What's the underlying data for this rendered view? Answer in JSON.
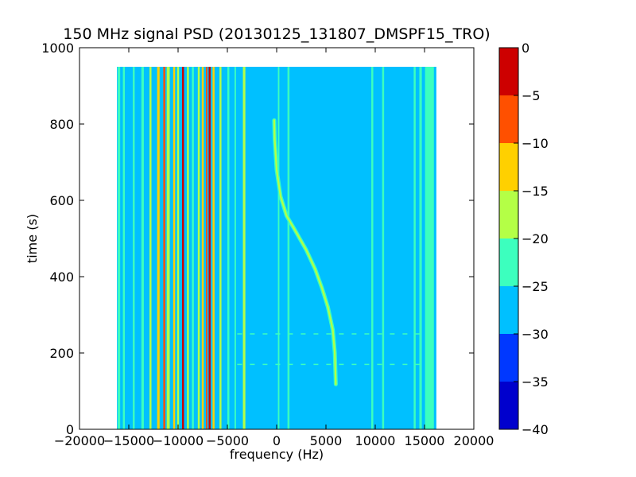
{
  "chart_data": {
    "type": "heatmap",
    "title": "150 MHz signal PSD (20130125_131807_DMSPF15_TRO)",
    "xlabel": "frequency (Hz)",
    "ylabel": "time (s)",
    "xlim": [
      -20000,
      20000
    ],
    "ylim": [
      0,
      1000
    ],
    "x_ticks": [
      -20000,
      -15000,
      -10000,
      -5000,
      0,
      5000,
      10000,
      15000,
      20000
    ],
    "x_tick_labels": [
      "−20000",
      "−15000",
      "−10000",
      "−5000",
      "0",
      "5000",
      "10000",
      "15000",
      "20000"
    ],
    "y_ticks": [
      0,
      200,
      400,
      600,
      800,
      1000
    ],
    "y_tick_labels": [
      "0",
      "200",
      "400",
      "600",
      "800",
      "1000"
    ],
    "data_extent": {
      "x": [
        -16200,
        16200
      ],
      "y": [
        0,
        950
      ]
    },
    "background_level": -27.5,
    "colorbar": {
      "levels": [
        -40,
        -35,
        -30,
        -25,
        -20,
        -15,
        -10,
        -5,
        0
      ],
      "tick_labels": [
        "−40",
        "−35",
        "−30",
        "−25",
        "−20",
        "−15",
        "−10",
        "−5",
        "0"
      ],
      "colors": [
        "#0000cd",
        "#0038ff",
        "#00c0ff",
        "#3cffbe",
        "#b4ff46",
        "#ffd000",
        "#ff5000",
        "#cd0000"
      ]
    },
    "vertical_lines": [
      {
        "freq": -16000,
        "level": -22.5,
        "width": 250
      },
      {
        "freq": -15500,
        "level": -22.5,
        "width": 200
      },
      {
        "freq": -14500,
        "level": -22.5,
        "width": 200
      },
      {
        "freq": -13600,
        "level": -22.5,
        "width": 250
      },
      {
        "freq": -12800,
        "level": -17.5,
        "width": 200
      },
      {
        "freq": -12000,
        "level": -12.5,
        "width": 250
      },
      {
        "freq": -11400,
        "level": -7.5,
        "width": 200
      },
      {
        "freq": -11000,
        "level": -17.5,
        "width": 300
      },
      {
        "freq": -10400,
        "level": -12.5,
        "width": 200
      },
      {
        "freq": -10000,
        "level": -17.5,
        "width": 200
      },
      {
        "freq": -9500,
        "level": -2.5,
        "width": 200
      },
      {
        "freq": -9000,
        "level": -17.5,
        "width": 200
      },
      {
        "freq": -8500,
        "level": -22.5,
        "width": 200
      },
      {
        "freq": -7900,
        "level": -17.5,
        "width": 200
      },
      {
        "freq": -7500,
        "level": -12.5,
        "width": 200
      },
      {
        "freq": -7100,
        "level": -7.5,
        "width": 150
      },
      {
        "freq": -6800,
        "level": -2.5,
        "width": 200
      },
      {
        "freq": -6400,
        "level": -12.5,
        "width": 200
      },
      {
        "freq": -5700,
        "level": -17.5,
        "width": 200
      },
      {
        "freq": -4900,
        "level": -22.5,
        "width": 200
      },
      {
        "freq": -4200,
        "level": -22.5,
        "width": 150
      },
      {
        "freq": -3300,
        "level": -17.5,
        "width": 250
      },
      {
        "freq": 200,
        "level": -22.5,
        "width": 150
      },
      {
        "freq": 1200,
        "level": -22.5,
        "width": 200
      },
      {
        "freq": 9700,
        "level": -22.5,
        "width": 200
      },
      {
        "freq": 10800,
        "level": -22.5,
        "width": 200
      },
      {
        "freq": 14000,
        "level": -22.5,
        "width": 200
      },
      {
        "freq": 14600,
        "level": -22.5,
        "width": 250
      },
      {
        "freq": 15500,
        "level": -22.5,
        "width": 900
      }
    ],
    "doppler_trace": {
      "level": -17.5,
      "points": [
        {
          "freq": 6000,
          "time": 118
        },
        {
          "freq": 5900,
          "time": 200
        },
        {
          "freq": 5700,
          "time": 260
        },
        {
          "freq": 5200,
          "time": 320
        },
        {
          "freq": 4600,
          "time": 370
        },
        {
          "freq": 3900,
          "time": 420
        },
        {
          "freq": 3000,
          "time": 470
        },
        {
          "freq": 1900,
          "time": 520
        },
        {
          "freq": 1000,
          "time": 560
        },
        {
          "freq": 400,
          "time": 610
        },
        {
          "freq": 0,
          "time": 680
        },
        {
          "freq": -200,
          "time": 760
        },
        {
          "freq": -250,
          "time": 810
        }
      ]
    },
    "horizontal_lines": [
      {
        "time": 170,
        "level": -22.5
      },
      {
        "time": 250,
        "level": -22.5
      }
    ]
  }
}
